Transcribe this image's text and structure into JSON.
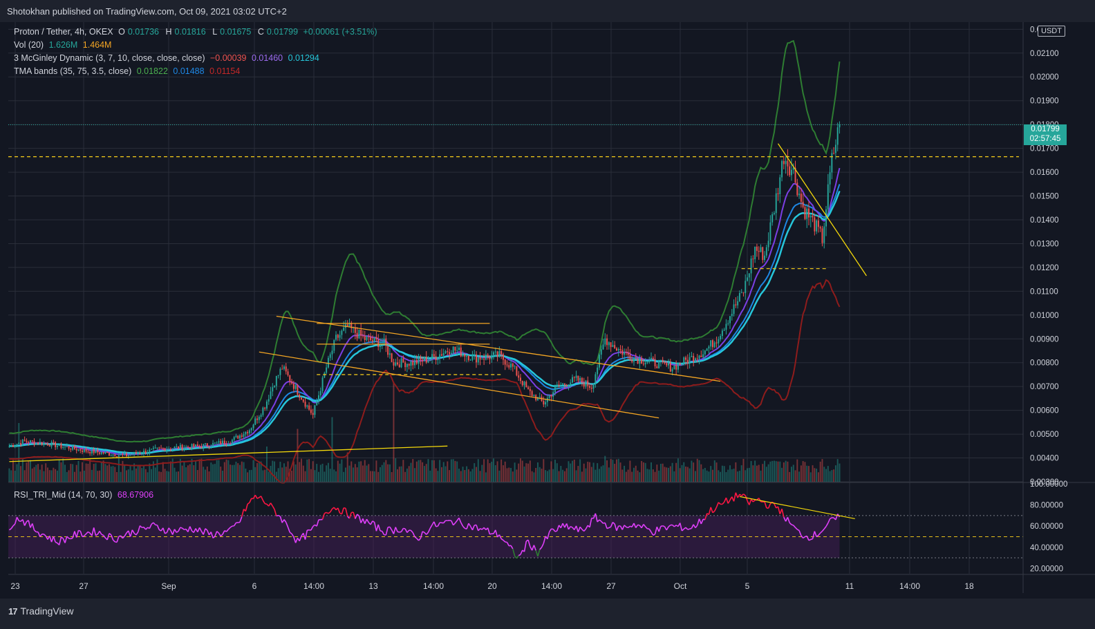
{
  "header": {
    "publisher": "Shotokhan published on TradingView.com, Oct 09, 2021 03:02 UTC+2"
  },
  "legend": {
    "symbol": "Proton / Tether, 4h, OKEX",
    "ohlc": {
      "o_label": "O",
      "o": "0.01736",
      "h_label": "H",
      "h": "0.01816",
      "l_label": "L",
      "l": "0.01675",
      "c_label": "C",
      "c": "0.01799",
      "chg": "+0.00061 (+3.51%)"
    },
    "vol": {
      "name": "Vol (20)",
      "v1": "1.626M",
      "v2": "1.464M"
    },
    "mcginley": {
      "name": "3 McGinley Dynamic (3, 7, 10, close, close, close)",
      "v1": "−0.00039",
      "v2": "0.01460",
      "v3": "0.01294"
    },
    "tma": {
      "name": "TMA bands (35, 75, 3.5, close)",
      "v1": "0.01822",
      "v2": "0.01488",
      "v3": "0.01154"
    },
    "rsi": {
      "name": "RSI_TRI_Mid (14, 70, 30)",
      "v1": "68.67906"
    }
  },
  "price_axis": {
    "currency": "USDT",
    "current_price": "0.01799",
    "countdown": "02:57:45"
  },
  "colors": {
    "bg": "#131722",
    "up": "#26a69a",
    "down": "#ef5350",
    "grid": "#2a2e39",
    "tma_upper": "#2e7d32",
    "tma_mid": "#1e88e5",
    "tma_lower": "#8e1c1c",
    "mcg1": "#7b3fe4",
    "mcg2": "#26c6da",
    "rsi": "#e040fb",
    "rsi_hot": "#ff1744",
    "trend_orange": "#f5a623",
    "trend_yellow": "#f5d90a",
    "level": "#e8c11a",
    "tv_logo": "#d1d4dc"
  },
  "chart_data": {
    "type": "candlestick",
    "symbol": "Proton / Tether",
    "timeframe": "4h",
    "exchange": "OKEX",
    "last": {
      "open": 0.01736,
      "high": 0.01816,
      "low": 0.01675,
      "close": 0.01799
    },
    "x_tick_labels": [
      "23",
      "27",
      "Sep",
      "6",
      "14:00",
      "13",
      "14:00",
      "20",
      "14:00",
      "27",
      "Oct",
      "5",
      "11",
      "14:00",
      "18"
    ],
    "y_tick_labels": [
      "0.02200",
      "0.02100",
      "0.02000",
      "0.01900",
      "0.01800",
      "0.01700",
      "0.01600",
      "0.01500",
      "0.01400",
      "0.01300",
      "0.01200",
      "0.01100",
      "0.01000",
      "0.00900",
      "0.00800",
      "0.00700",
      "0.00600",
      "0.00500",
      "0.00400",
      "0.00300"
    ],
    "ylim": [
      0.003,
      0.0223
    ],
    "rsi_tick_labels": [
      "100.00000",
      "80.00000",
      "60.00000",
      "40.00000",
      "20.00000"
    ],
    "rsi_ylim": [
      15,
      100
    ],
    "rsi_levels": [
      70,
      50,
      30
    ],
    "horizontal_levels": [
      0.01665,
      0.01195
    ],
    "close_anchors": [
      [
        0,
        0.0045
      ],
      [
        8,
        0.0047
      ],
      [
        20,
        0.0046
      ],
      [
        40,
        0.0043
      ],
      [
        60,
        0.0041
      ],
      [
        80,
        0.0044
      ],
      [
        100,
        0.0045
      ],
      [
        115,
        0.0047
      ],
      [
        125,
        0.0052
      ],
      [
        133,
        0.0062
      ],
      [
        138,
        0.0072
      ],
      [
        142,
        0.0078
      ],
      [
        150,
        0.0068
      ],
      [
        158,
        0.0058
      ],
      [
        165,
        0.0078
      ],
      [
        170,
        0.009
      ],
      [
        176,
        0.0095
      ],
      [
        185,
        0.009
      ],
      [
        195,
        0.0088
      ],
      [
        200,
        0.008
      ],
      [
        210,
        0.008
      ],
      [
        220,
        0.0082
      ],
      [
        230,
        0.0086
      ],
      [
        242,
        0.0082
      ],
      [
        255,
        0.0083
      ],
      [
        262,
        0.0078
      ],
      [
        270,
        0.0068
      ],
      [
        278,
        0.0063
      ],
      [
        285,
        0.007
      ],
      [
        295,
        0.0073
      ],
      [
        303,
        0.007
      ],
      [
        310,
        0.009
      ],
      [
        318,
        0.0085
      ],
      [
        325,
        0.0082
      ],
      [
        335,
        0.008
      ],
      [
        345,
        0.0078
      ],
      [
        355,
        0.0082
      ],
      [
        362,
        0.0085
      ],
      [
        368,
        0.009
      ],
      [
        375,
        0.01
      ],
      [
        382,
        0.011
      ],
      [
        388,
        0.0128
      ],
      [
        393,
        0.0125
      ],
      [
        398,
        0.0145
      ],
      [
        403,
        0.0167
      ],
      [
        408,
        0.016
      ],
      [
        413,
        0.0145
      ],
      [
        419,
        0.0138
      ],
      [
        423,
        0.0132
      ],
      [
        428,
        0.0165
      ],
      [
        432,
        0.018
      ]
    ],
    "volume_spikes": [
      [
        5,
        0.5
      ],
      [
        52,
        0.15
      ],
      [
        134,
        0.3
      ],
      [
        150,
        0.45
      ],
      [
        168,
        0.55
      ],
      [
        176,
        0.25
      ],
      [
        200,
        0.85
      ],
      [
        310,
        0.22
      ],
      [
        388,
        0.18
      ]
    ],
    "rsi_anchors": [
      [
        0,
        60
      ],
      [
        5,
        68
      ],
      [
        15,
        55
      ],
      [
        25,
        45
      ],
      [
        35,
        52
      ],
      [
        45,
        55
      ],
      [
        55,
        48
      ],
      [
        65,
        55
      ],
      [
        75,
        60
      ],
      [
        85,
        55
      ],
      [
        95,
        58
      ],
      [
        105,
        52
      ],
      [
        115,
        55
      ],
      [
        120,
        65
      ],
      [
        124,
        80
      ],
      [
        128,
        88
      ],
      [
        132,
        85
      ],
      [
        138,
        75
      ],
      [
        145,
        60
      ],
      [
        150,
        45
      ],
      [
        160,
        60
      ],
      [
        165,
        75
      ],
      [
        170,
        78
      ],
      [
        176,
        72
      ],
      [
        185,
        65
      ],
      [
        195,
        55
      ],
      [
        205,
        58
      ],
      [
        212,
        48
      ],
      [
        220,
        60
      ],
      [
        232,
        65
      ],
      [
        240,
        60
      ],
      [
        255,
        52
      ],
      [
        260,
        40
      ],
      [
        265,
        30
      ],
      [
        270,
        45
      ],
      [
        275,
        35
      ],
      [
        282,
        55
      ],
      [
        290,
        60
      ],
      [
        298,
        55
      ],
      [
        305,
        68
      ],
      [
        310,
        62
      ],
      [
        318,
        58
      ],
      [
        325,
        62
      ],
      [
        335,
        55
      ],
      [
        345,
        60
      ],
      [
        355,
        58
      ],
      [
        360,
        65
      ],
      [
        365,
        75
      ],
      [
        370,
        80
      ],
      [
        375,
        85
      ],
      [
        380,
        90
      ],
      [
        385,
        82
      ],
      [
        390,
        85
      ],
      [
        395,
        80
      ],
      [
        400,
        78
      ],
      [
        405,
        65
      ],
      [
        410,
        55
      ],
      [
        415,
        50
      ],
      [
        420,
        52
      ],
      [
        425,
        60
      ],
      [
        428,
        65
      ],
      [
        432,
        68.68
      ]
    ],
    "trendlines": [
      {
        "color": "trend_orange",
        "from": [
          139,
          0.00995
        ],
        "to": [
          370,
          0.00722
        ]
      },
      {
        "color": "trend_orange",
        "from": [
          130,
          0.00845
        ],
        "to": [
          338,
          0.00568
        ]
      },
      {
        "color": "trend_orange",
        "from": [
          160,
          0.00965
        ],
        "to": [
          250,
          0.00965
        ]
      },
      {
        "color": "trend_orange",
        "from": [
          160,
          0.00878
        ],
        "to": [
          250,
          0.00878
        ]
      },
      {
        "color": "trend_yellow",
        "from": [
          0,
          0.00385
        ],
        "to": [
          228,
          0.0045
        ]
      },
      {
        "color": "trend_yellow",
        "from": [
          400,
          0.0172
        ],
        "to": [
          446,
          0.01165
        ]
      }
    ],
    "dashed_segments": [
      {
        "from": [
          160,
          0.0075
        ],
        "to": [
          256,
          0.0075
        ]
      },
      {
        "from": [
          381,
          0.01195
        ],
        "to": [
          425,
          0.01195
        ]
      }
    ],
    "rsi_trendline": {
      "from": [
        380,
        88
      ],
      "to": [
        440,
        67
      ]
    },
    "series": [
      {
        "name": "TMA upper",
        "color": "tma_upper",
        "last": 0.01822
      },
      {
        "name": "TMA mid",
        "color": "tma_mid",
        "last": 0.01488
      },
      {
        "name": "TMA lower",
        "color": "tma_lower",
        "last": 0.01154
      },
      {
        "name": "McGinley",
        "color": "mcg1",
        "last": 0.0146
      },
      {
        "name": "McGinley",
        "color": "mcg2",
        "last": 0.01294
      }
    ]
  }
}
